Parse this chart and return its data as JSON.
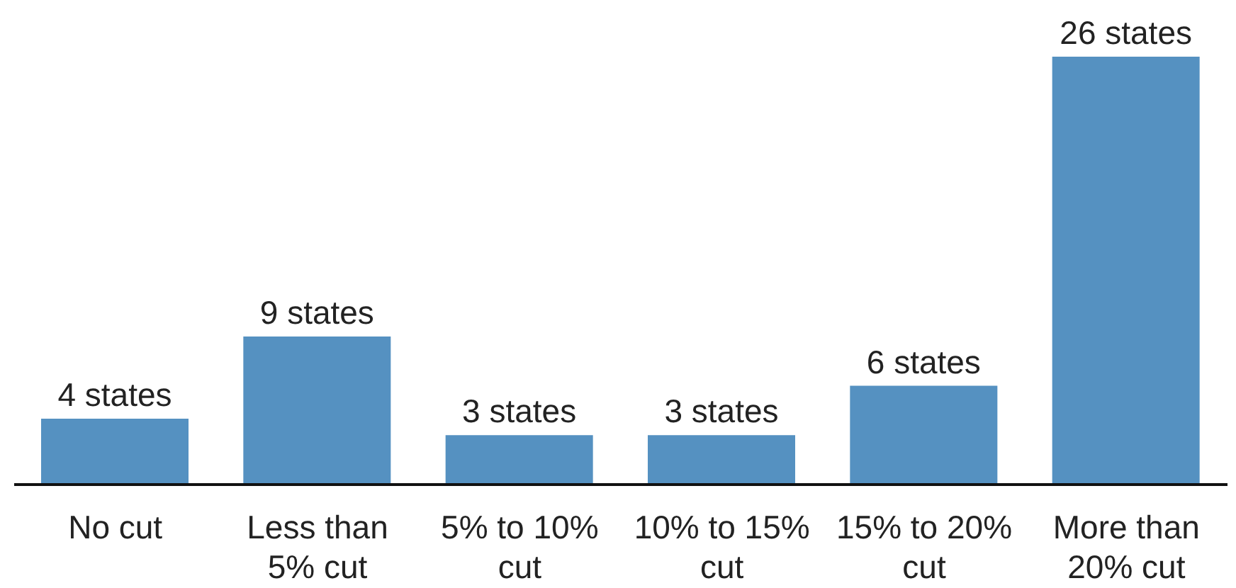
{
  "chart_data": {
    "type": "bar",
    "categories": [
      "No cut",
      "Less than 5% cut",
      "5% to 10% cut",
      "10% to 15% cut",
      "15% to 20% cut",
      "More than 20% cut"
    ],
    "values": [
      4,
      9,
      3,
      3,
      6,
      26
    ],
    "value_labels": [
      "4 states",
      "9 states",
      "3 states",
      "3 states",
      "6 states",
      "26 states"
    ],
    "color": "#5591c1",
    "grid": false,
    "legend": false
  }
}
